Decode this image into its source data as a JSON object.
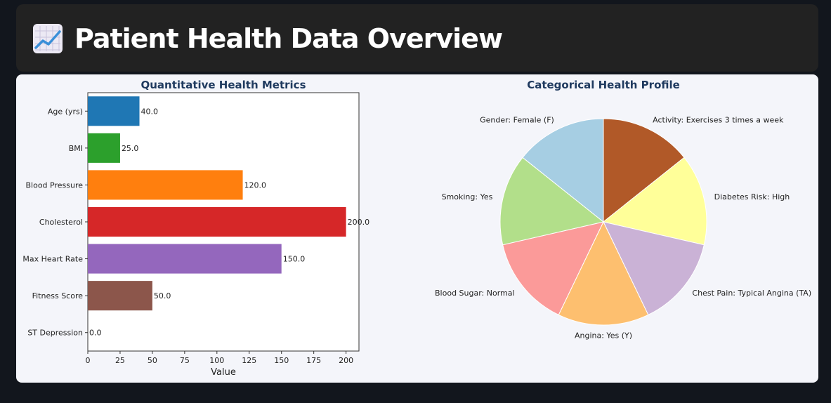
{
  "page": {
    "title": "Patient Health Data Overview",
    "icon": "chart-increasing-icon"
  },
  "colors": {
    "title_text": "#1f3a5f",
    "background": "#12161d",
    "header_bg": "#222222",
    "panel_bg": "#f4f5fa"
  },
  "chart_data": [
    {
      "type": "bar",
      "orientation": "horizontal",
      "title": "Quantitative Health Metrics",
      "xlabel": "Value",
      "ylabel": "",
      "xlim": [
        0,
        210
      ],
      "xticks": [
        0,
        25,
        50,
        75,
        100,
        125,
        150,
        175,
        200
      ],
      "grid": false,
      "categories": [
        "Age (yrs)",
        "BMI",
        "Blood Pressure",
        "Cholesterol",
        "Max Heart Rate",
        "Fitness Score",
        "ST Depression"
      ],
      "values": [
        40.0,
        25.0,
        120.0,
        200.0,
        150.0,
        50.0,
        0.0
      ],
      "value_labels": [
        "40.0",
        "25.0",
        "120.0",
        "200.0",
        "150.0",
        "50.0",
        "0.0"
      ],
      "colors": [
        "#1f77b4",
        "#2ca02c",
        "#ff7f0e",
        "#d62728",
        "#9467bd",
        "#8c564b",
        "#e377c2"
      ]
    },
    {
      "type": "pie",
      "title": "Categorical Health Profile",
      "labels": [
        "Activity: Exercises 3 times a week",
        "Diabetes Risk: High",
        "Chest Pain: Typical Angina (TA)",
        "Angina: Yes (Y)",
        "Blood Sugar: Normal",
        "Smoking: Yes",
        "Gender: Female (F)"
      ],
      "values": [
        1,
        1,
        1,
        1,
        1,
        1,
        1
      ],
      "colors": [
        "#b15928",
        "#ffff99",
        "#cab2d6",
        "#fdbf6f",
        "#fb9a99",
        "#b2df8a",
        "#a6cee3"
      ],
      "start": "top, clockwise"
    }
  ]
}
